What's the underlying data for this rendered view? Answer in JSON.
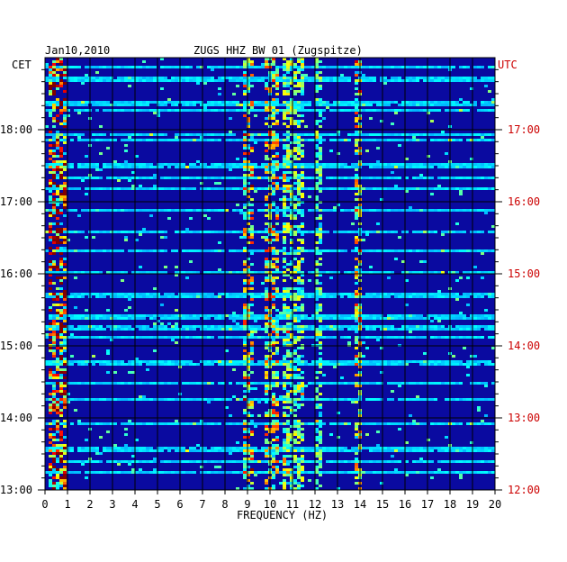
{
  "chart_data": {
    "type": "heatmap",
    "title": "ZUGS HHZ BW 01 (Zugspitze)",
    "date_label": "Jan10,2010",
    "left_axis_title": "CET",
    "right_axis_title": "UTC",
    "xlabel": "FREQUENCY (HZ)",
    "x_ticks": [
      "0",
      "1",
      "2",
      "3",
      "4",
      "5",
      "6",
      "7",
      "8",
      "9",
      "10",
      "11",
      "12",
      "13",
      "14",
      "15",
      "16",
      "17",
      "18",
      "19",
      "20"
    ],
    "xlim": [
      0,
      20
    ],
    "left_ticks": [
      {
        "label": "18:00",
        "hours_before_top": 1
      },
      {
        "label": "17:00",
        "hours_before_top": 2
      },
      {
        "label": "16:00",
        "hours_before_top": 3
      },
      {
        "label": "15:00",
        "hours_before_top": 4
      },
      {
        "label": "14:00",
        "hours_before_top": 5
      },
      {
        "label": "13:00",
        "hours_before_top": 6
      }
    ],
    "right_ticks": [
      {
        "label": "17:00",
        "hours_before_top": 1
      },
      {
        "label": "16:00",
        "hours_before_top": 2
      },
      {
        "label": "15:00",
        "hours_before_top": 3
      },
      {
        "label": "14:00",
        "hours_before_top": 4
      },
      {
        "label": "13:00",
        "hours_before_top": 5
      },
      {
        "label": "12:00",
        "hours_before_top": 6
      }
    ],
    "time_span_hours": 6,
    "colors": {
      "background_low": "#0a0aa0",
      "text": "#000000",
      "utc_text": "#cc0000",
      "grid": "#000000"
    },
    "hot_bands_hz": [
      {
        "from": 0.1,
        "to": 0.9,
        "strength": 0.85
      },
      {
        "from": 8.8,
        "to": 9.3,
        "strength": 0.55
      },
      {
        "from": 9.8,
        "to": 10.4,
        "strength": 0.55
      },
      {
        "from": 10.5,
        "to": 11.5,
        "strength": 0.35
      },
      {
        "from": 13.7,
        "to": 14.1,
        "strength": 0.55
      },
      {
        "from": 12.0,
        "to": 12.3,
        "strength": 0.3
      }
    ],
    "legend": "none",
    "grid": true
  }
}
